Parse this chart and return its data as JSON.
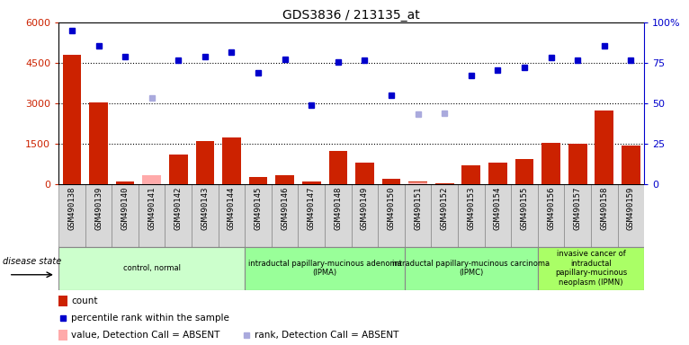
{
  "title": "GDS3836 / 213135_at",
  "samples": [
    "GSM490138",
    "GSM490139",
    "GSM490140",
    "GSM490141",
    "GSM490142",
    "GSM490143",
    "GSM490144",
    "GSM490145",
    "GSM490146",
    "GSM490147",
    "GSM490148",
    "GSM490149",
    "GSM490150",
    "GSM490151",
    "GSM490152",
    "GSM490153",
    "GSM490154",
    "GSM490155",
    "GSM490156",
    "GSM490157",
    "GSM490158",
    "GSM490159"
  ],
  "count_values": [
    4800,
    3050,
    130,
    null,
    1100,
    1600,
    1750,
    270,
    340,
    130,
    1250,
    820,
    200,
    100,
    50,
    700,
    800,
    950,
    1550,
    1500,
    2750,
    1450
  ],
  "count_absent": [
    null,
    null,
    null,
    350,
    null,
    null,
    null,
    null,
    null,
    null,
    null,
    null,
    null,
    90,
    null,
    null,
    null,
    null,
    null,
    null,
    null,
    null
  ],
  "percentile_values": [
    5700,
    5150,
    4750,
    null,
    4600,
    4750,
    4900,
    4150,
    4650,
    2950,
    4550,
    4600,
    3300,
    null,
    null,
    4050,
    4250,
    4350,
    4700,
    4600,
    5150,
    4600
  ],
  "percentile_absent": [
    null,
    null,
    null,
    3200,
    null,
    null,
    null,
    null,
    null,
    null,
    null,
    null,
    null,
    2600,
    2650,
    null,
    null,
    null,
    null,
    null,
    null,
    null
  ],
  "ylim_left": [
    0,
    6000
  ],
  "yticks_left": [
    0,
    1500,
    3000,
    4500,
    6000
  ],
  "ytick_labels_left": [
    "0",
    "1500",
    "3000",
    "4500",
    "6000"
  ],
  "ytick_labels_right": [
    "0",
    "25",
    "50",
    "75",
    "100%"
  ],
  "dotted_lines": [
    1500,
    3000,
    4500
  ],
  "group_labels": [
    "control, normal",
    "intraductal papillary-mucinous adenoma\n(IPMA)",
    "intraductal papillary-mucinous carcinoma\n(IPMC)",
    "invasive cancer of\nintraductal\npapillary-mucinous\nneoplasm (IPMN)"
  ],
  "group_starts": [
    0,
    7,
    13,
    18
  ],
  "group_ends": [
    7,
    13,
    18,
    22
  ],
  "group_colors": [
    "#ccffcc",
    "#99ff99",
    "#99ff99",
    "#aaff66"
  ],
  "bar_color": "#cc2200",
  "bar_absent_color": "#ffaaaa",
  "dot_color": "#0000cc",
  "dot_absent_color": "#aaaadd",
  "disease_state_label": "disease state"
}
